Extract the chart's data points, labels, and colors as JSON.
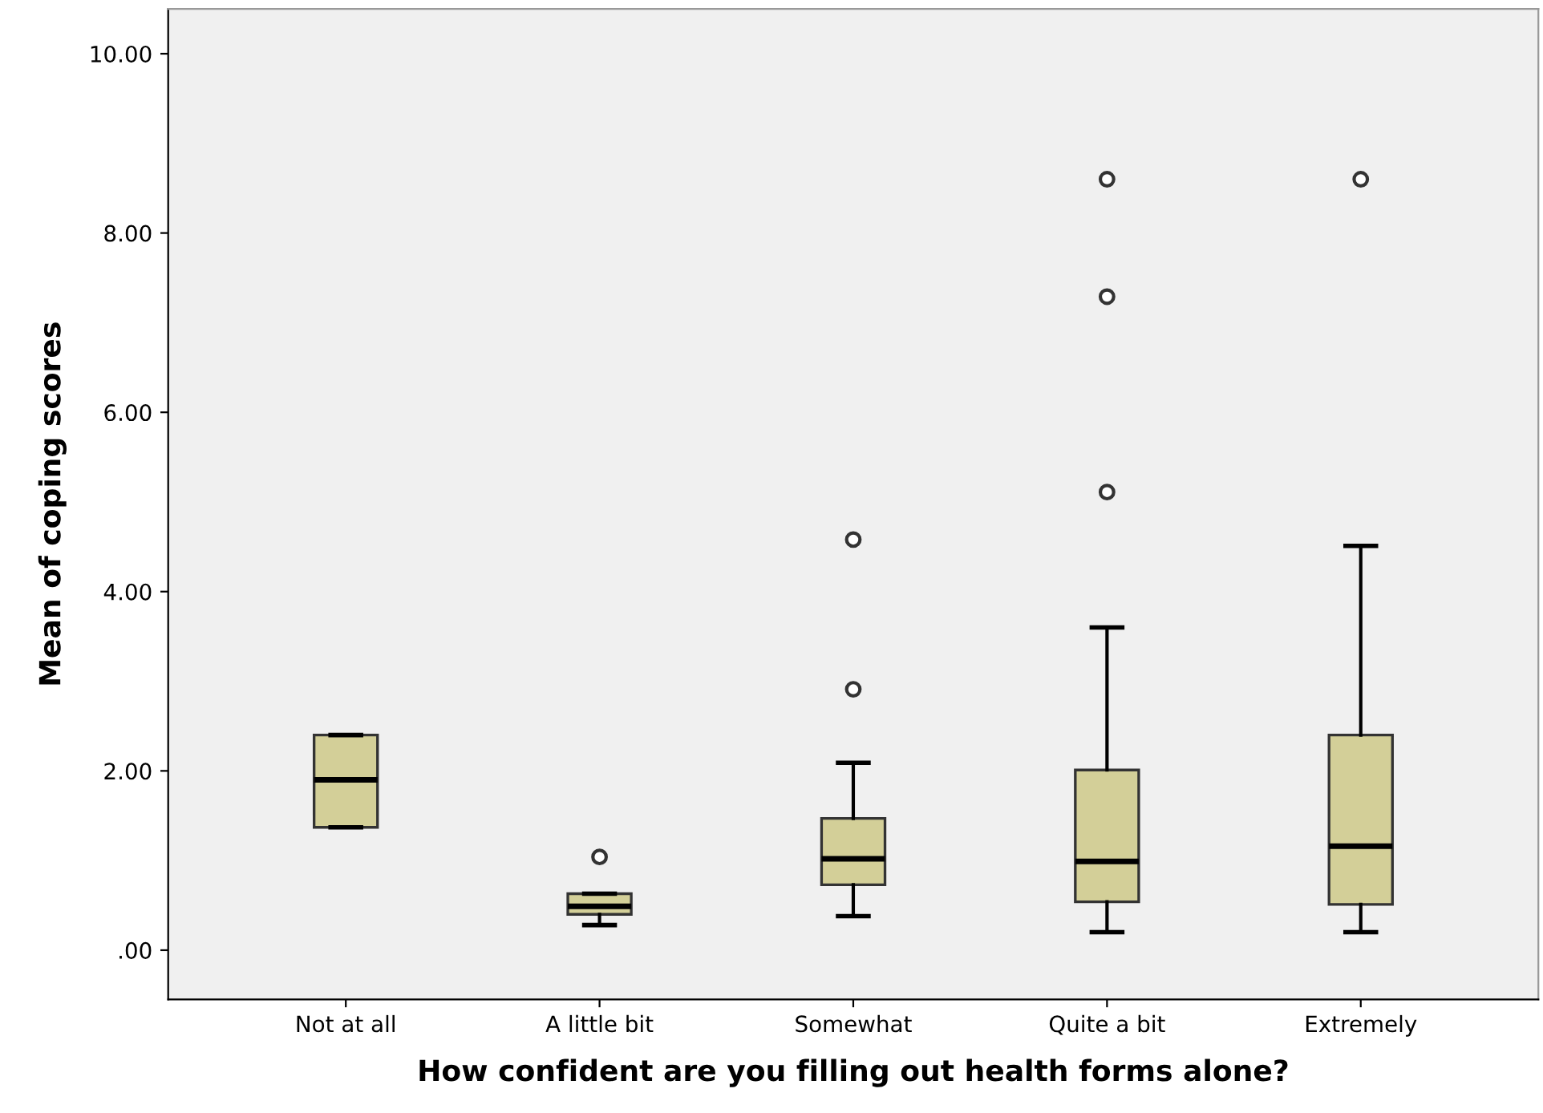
{
  "chart_data": {
    "type": "box",
    "xlabel": "How confident are you filling out health forms alone?",
    "ylabel": "Mean of coping scores",
    "categories": [
      "Not at all",
      "A little bit",
      "Somewhat",
      "Quite a bit",
      "Extremely"
    ],
    "color": "#d3cf98",
    "boxes": [
      {
        "low": 1.37,
        "q1": 1.37,
        "median": 1.9,
        "q3": 2.4,
        "high": 2.4
      },
      {
        "low": 0.28,
        "q1": 0.4,
        "median": 0.49,
        "q3": 0.63,
        "high": 0.63,
        "outliers": [
          1.04
        ]
      },
      {
        "low": 0.38,
        "q1": 0.73,
        "median": 1.02,
        "q3": 1.47,
        "high": 2.09,
        "outliers": [
          2.91,
          4.58
        ]
      },
      {
        "low": 0.2,
        "q1": 0.54,
        "median": 0.99,
        "q3": 2.01,
        "high": 3.6,
        "outliers": [
          5.11,
          7.29,
          8.6
        ]
      },
      {
        "low": 0.2,
        "q1": 0.51,
        "median": 1.16,
        "q3": 2.4,
        "high": 4.51,
        "outliers": [
          8.6
        ]
      }
    ],
    "ylim": [
      -0.55,
      10.5
    ],
    "yticks": [
      {
        "value": 0,
        "label": ".00"
      },
      {
        "value": 2,
        "label": "2.00"
      },
      {
        "value": 4,
        "label": "4.00"
      },
      {
        "value": 6,
        "label": "6.00"
      },
      {
        "value": 8,
        "label": "8.00"
      },
      {
        "value": 10,
        "label": "10.00"
      }
    ],
    "grid": false,
    "marker": "circle"
  }
}
